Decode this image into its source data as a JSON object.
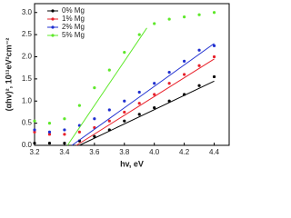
{
  "chart_data": {
    "type": "scatter",
    "x_label": "hv, eV",
    "y_label": "(αhv)², 10¹¹eV²cm⁻²",
    "x": [
      3.2,
      3.3,
      3.4,
      3.5,
      3.6,
      3.7,
      3.8,
      3.9,
      4.0,
      4.1,
      4.2,
      4.3,
      4.4
    ],
    "series": [
      {
        "name": "0% Mg",
        "color": "#000000",
        "values": [
          0.05,
          0.05,
          0.05,
          0.1,
          0.2,
          0.35,
          0.55,
          0.7,
          0.85,
          1.0,
          1.15,
          1.35,
          1.55
        ]
      },
      {
        "name": "1% Mg",
        "color": "#e8202a",
        "values": [
          0.3,
          0.25,
          0.25,
          0.3,
          0.4,
          0.55,
          0.75,
          0.95,
          1.15,
          1.4,
          1.6,
          1.8,
          2.0
        ]
      },
      {
        "name": "2% Mg",
        "color": "#1f2fd0",
        "values": [
          0.35,
          0.3,
          0.35,
          0.45,
          0.6,
          0.8,
          1.0,
          1.2,
          1.4,
          1.65,
          1.9,
          2.15,
          2.25
        ]
      },
      {
        "name": "5% Mg",
        "color": "#5ee82a",
        "values": [
          0.55,
          0.5,
          0.6,
          0.9,
          1.3,
          1.7,
          2.1,
          2.5,
          2.75,
          2.85,
          2.9,
          2.95,
          3.0
        ]
      }
    ],
    "fit_lines": [
      {
        "color": "#000000",
        "x": [
          3.5,
          4.4
        ],
        "values": [
          0,
          1.45
        ]
      },
      {
        "color": "#e8202a",
        "x": [
          3.48,
          4.4
        ],
        "values": [
          0,
          1.95
        ]
      },
      {
        "color": "#1f2fd0",
        "x": [
          3.45,
          4.4
        ],
        "values": [
          0,
          2.3
        ]
      },
      {
        "color": "#5ee82a",
        "x": [
          3.42,
          3.95
        ],
        "values": [
          0,
          2.65
        ]
      }
    ],
    "xlim": [
      3.2,
      4.5
    ],
    "ylim": [
      0,
      3.2
    ],
    "xticks": [
      3.2,
      3.4,
      3.6,
      3.8,
      {
        "value": 4.0,
        "label": "4.0"
      },
      4.2,
      4.4
    ],
    "yticks": [
      {
        "value": 0,
        "label": "0.0"
      },
      0.5,
      {
        "value": 1,
        "label": "1.0"
      },
      1.5,
      {
        "value": 2,
        "label": "2.0"
      },
      2.5,
      {
        "value": 3,
        "label": "3.0"
      }
    ],
    "legend": "upper-left"
  }
}
